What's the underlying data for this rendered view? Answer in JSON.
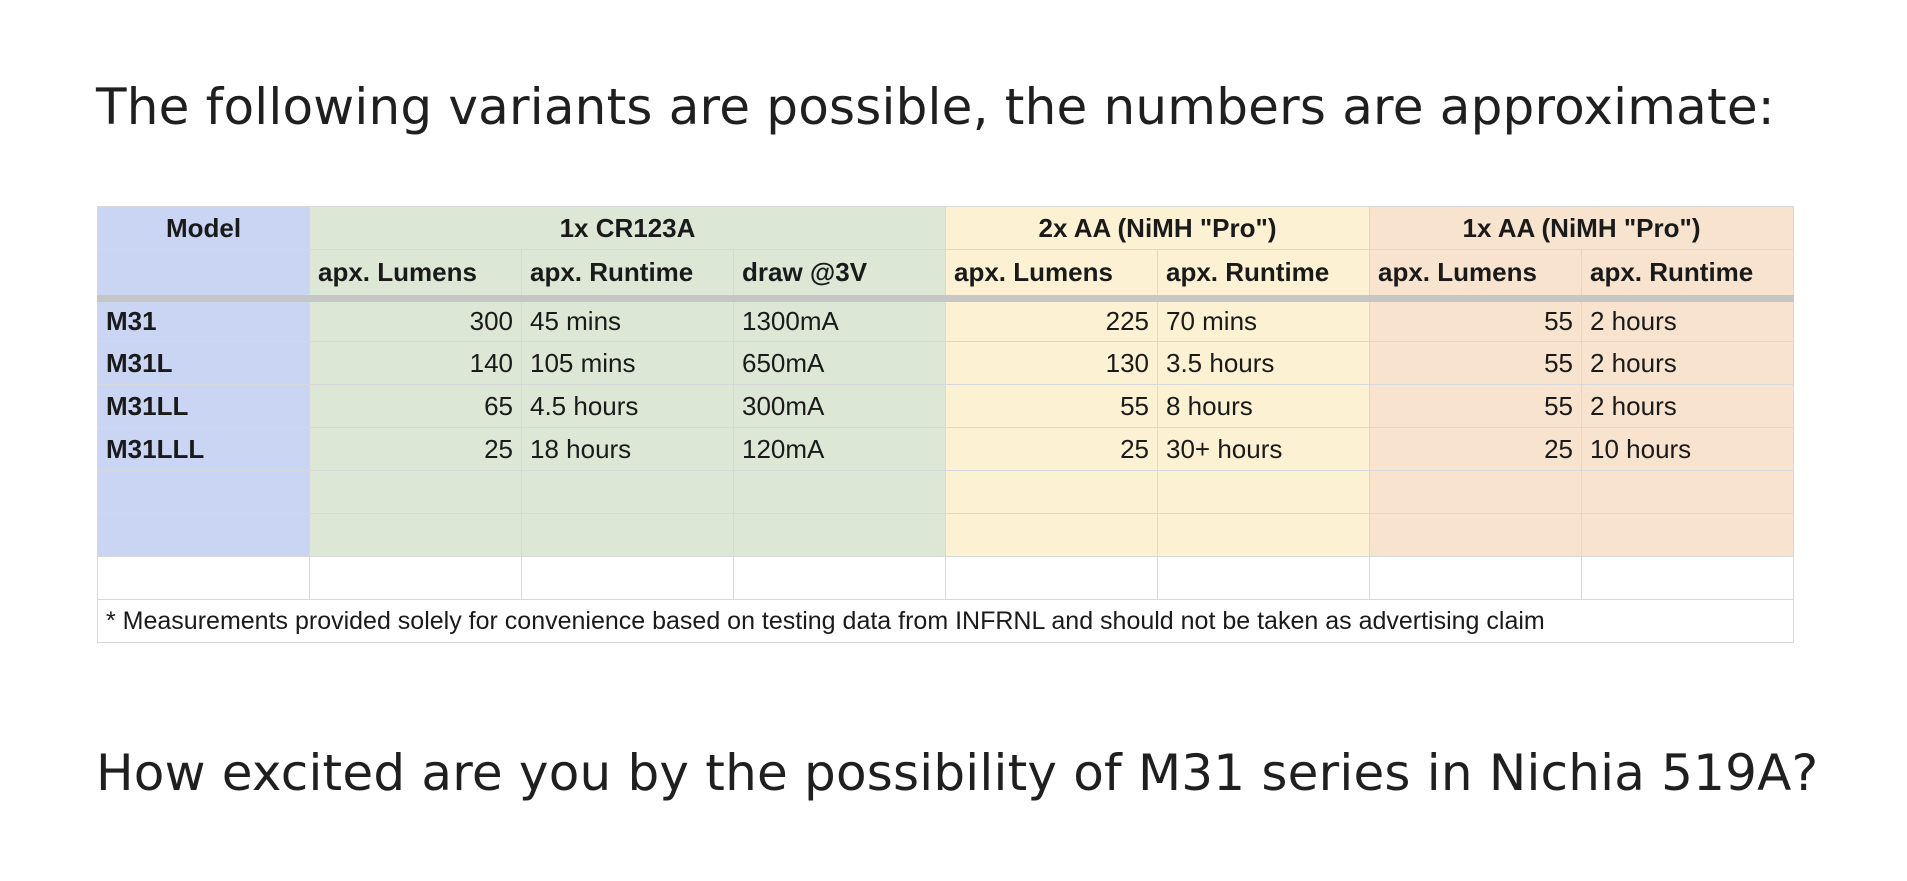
{
  "intro_text": "The following variants are possible, the numbers are approximate:",
  "question_text": "How excited are you by the possibility of M31 series in Nichia 519A?",
  "table": {
    "header": {
      "model": "Model",
      "group_cr123a": "1x CR123A",
      "group_2aa": "2x AA (NiMH \"Pro\")",
      "group_1aa": "1x AA (NiMH \"Pro\")"
    },
    "subheader": {
      "cr_lumens": "apx. Lumens",
      "cr_runtime": "apx. Runtime",
      "cr_draw": "draw @3V",
      "aa2_lumens": "apx. Lumens",
      "aa2_runtime": "apx. Runtime",
      "aa1_lumens": "apx. Lumens",
      "aa1_runtime": "apx. Runtime"
    },
    "rows": [
      {
        "model": "M31",
        "cr_lumens": "300",
        "cr_runtime": "45 mins",
        "cr_draw": "1300mA",
        "aa2_lumens": "225",
        "aa2_runtime": "70 mins",
        "aa1_lumens": "55",
        "aa1_runtime": "2 hours"
      },
      {
        "model": "M31L",
        "cr_lumens": "140",
        "cr_runtime": "105 mins",
        "cr_draw": "650mA",
        "aa2_lumens": "130",
        "aa2_runtime": "3.5 hours",
        "aa1_lumens": "55",
        "aa1_runtime": "2 hours"
      },
      {
        "model": "M31LL",
        "cr_lumens": "65",
        "cr_runtime": "4.5 hours",
        "cr_draw": "300mA",
        "aa2_lumens": "55",
        "aa2_runtime": "8 hours",
        "aa1_lumens": "55",
        "aa1_runtime": "2 hours"
      },
      {
        "model": "M31LLL",
        "cr_lumens": "25",
        "cr_runtime": "18 hours",
        "cr_draw": "120mA",
        "aa2_lumens": "25",
        "aa2_runtime": "30+ hours",
        "aa1_lumens": "25",
        "aa1_runtime": "10 hours"
      }
    ],
    "footnote": "* Measurements provided solely for convenience based on testing data from INFRNL and should not be taken as advertising claim"
  },
  "colors": {
    "model_column": "#c9d5f2",
    "cr123a_group": "#dce7d6",
    "aa2_group": "#fcf1d3",
    "aa1_group": "#f7e3ce"
  }
}
